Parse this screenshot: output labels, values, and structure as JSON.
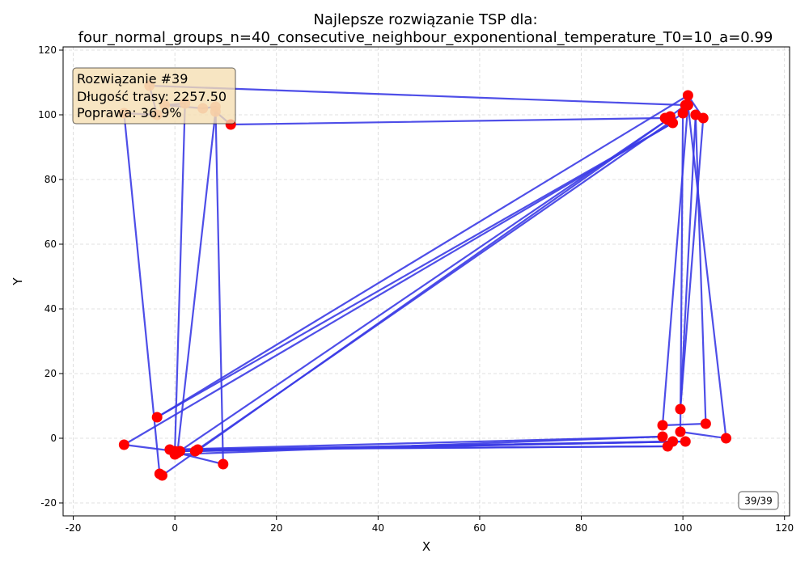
{
  "chart_data": {
    "type": "line",
    "title_line1": "Najlepsze rozwiązanie TSP dla:",
    "title_line2": "four_normal_groups_n=40_consecutive_neighbour_exponentional_temperature_T0=10_a=0.99",
    "xlabel": "X",
    "ylabel": "Y",
    "xlim": [
      -22,
      121
    ],
    "ylim": [
      -24,
      121
    ],
    "xticks": [
      -20,
      0,
      20,
      40,
      60,
      80,
      100,
      120
    ],
    "yticks": [
      -20,
      0,
      20,
      40,
      60,
      80,
      100,
      120
    ],
    "grid": true,
    "route_color": "#3b3be6",
    "current_point_color": "#ff0000",
    "faded_point_color": "#fa8a72",
    "info_box": {
      "line1": "Rozwiązanie #39",
      "line2": "Długość trasy: 2257.50",
      "line3": "Poprawa: 36.9%"
    },
    "frame_counter": "39/39",
    "route": [
      [
        11,
        97
      ],
      [
        96.5,
        99
      ],
      [
        97.5,
        99.5
      ],
      [
        100.5,
        103
      ],
      [
        -5,
        109
      ],
      [
        -3.5,
        100
      ],
      [
        -10,
        100.5
      ],
      [
        -3,
        -11
      ],
      [
        -2.5,
        -11.5
      ],
      [
        97,
        98.5
      ],
      [
        0,
        -5
      ],
      [
        96,
        0.5
      ],
      [
        -1,
        -3.5
      ],
      [
        97,
        -2.5
      ],
      [
        4.5,
        -3.5
      ],
      [
        98,
        -1
      ],
      [
        1,
        -4
      ],
      [
        100.5,
        -1
      ],
      [
        4,
        -4
      ],
      [
        100,
        100.5
      ],
      [
        99.5,
        2
      ],
      [
        108.5,
        0
      ],
      [
        101,
        103
      ],
      [
        96,
        4
      ],
      [
        104.5,
        4.5
      ],
      [
        102.5,
        100
      ],
      [
        99.5,
        9
      ],
      [
        104,
        99
      ],
      [
        101,
        106
      ],
      [
        -3.5,
        6.5
      ],
      [
        98,
        97.5
      ],
      [
        -10,
        -2
      ],
      [
        0,
        -4
      ],
      [
        2,
        103.5
      ],
      [
        -2,
        103
      ],
      [
        5.5,
        102
      ],
      [
        8,
        102.5
      ],
      [
        9.5,
        -8
      ],
      [
        0.5,
        -4.5
      ],
      [
        8,
        101
      ],
      [
        11,
        97
      ]
    ],
    "points": [
      [
        11,
        97
      ],
      [
        96.5,
        99
      ],
      [
        97.5,
        99.5
      ],
      [
        100.5,
        103
      ],
      [
        97,
        98.5
      ],
      [
        -3,
        -11
      ],
      [
        -2.5,
        -11.5
      ],
      [
        0,
        -5
      ],
      [
        96,
        0.5
      ],
      [
        -1,
        -3.5
      ],
      [
        97,
        -2.5
      ],
      [
        4.5,
        -3.5
      ],
      [
        98,
        -1
      ],
      [
        1,
        -4
      ],
      [
        100.5,
        -1
      ],
      [
        4,
        -4
      ],
      [
        100,
        100.5
      ],
      [
        99.5,
        2
      ],
      [
        108.5,
        0
      ],
      [
        101,
        103
      ],
      [
        96,
        4
      ],
      [
        104.5,
        4.5
      ],
      [
        102.5,
        100
      ],
      [
        99.5,
        9
      ],
      [
        104,
        99
      ],
      [
        101,
        106
      ],
      [
        -3.5,
        6.5
      ],
      [
        98,
        97.5
      ],
      [
        -10,
        -2
      ],
      [
        0,
        -4
      ],
      [
        9.5,
        -8
      ],
      [
        0.5,
        -4.5
      ]
    ],
    "faded_points": [
      [
        -5,
        109
      ],
      [
        -3.5,
        100
      ],
      [
        -10,
        100.5
      ],
      [
        2,
        103.5
      ],
      [
        -2,
        103
      ],
      [
        5.5,
        102
      ],
      [
        8,
        102.5
      ],
      [
        8,
        101
      ]
    ]
  }
}
